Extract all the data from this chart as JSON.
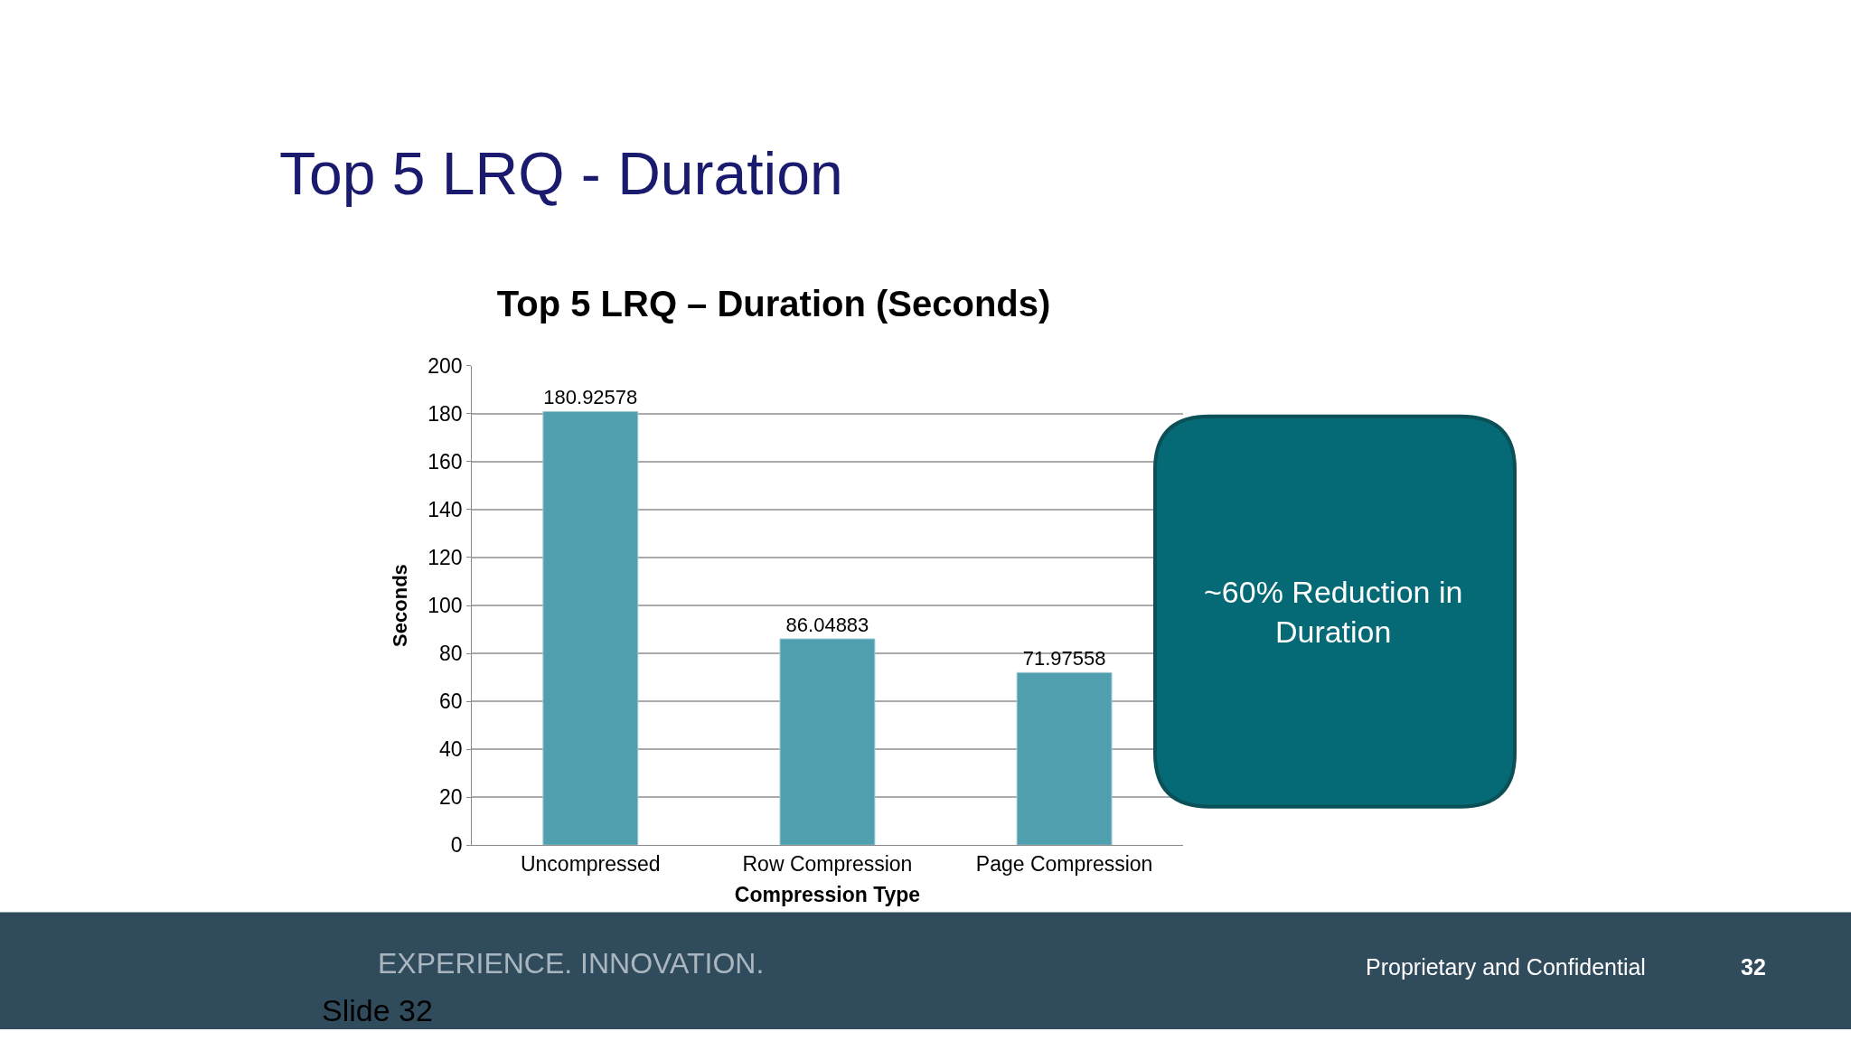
{
  "chart_data": {
    "type": "bar",
    "subtitle": "Top 5 LRQ - Duration",
    "title": "Top 5 LRQ – Duration (Seconds)",
    "xlabel": "Compression Type",
    "ylabel": "Seconds",
    "categories": [
      "Uncompressed",
      "Row Compression",
      "Page Compression"
    ],
    "values": [
      180.92578,
      86.04883,
      71.97558
    ],
    "value_labels": [
      "180.92578",
      "86.04883",
      "71.97558"
    ],
    "color": "#4f9fae",
    "ylim": [
      0,
      200
    ],
    "yticks": [
      0,
      20,
      40,
      60,
      80,
      100,
      120,
      140,
      160,
      180,
      200
    ],
    "grid": "y",
    "legend": false,
    "annotations": [
      "~60% Reduction in Duration",
      "EXPERIENCE. INNOVATION.",
      "Proprietary and Confidential",
      "32",
      "Slide 32"
    ]
  }
}
